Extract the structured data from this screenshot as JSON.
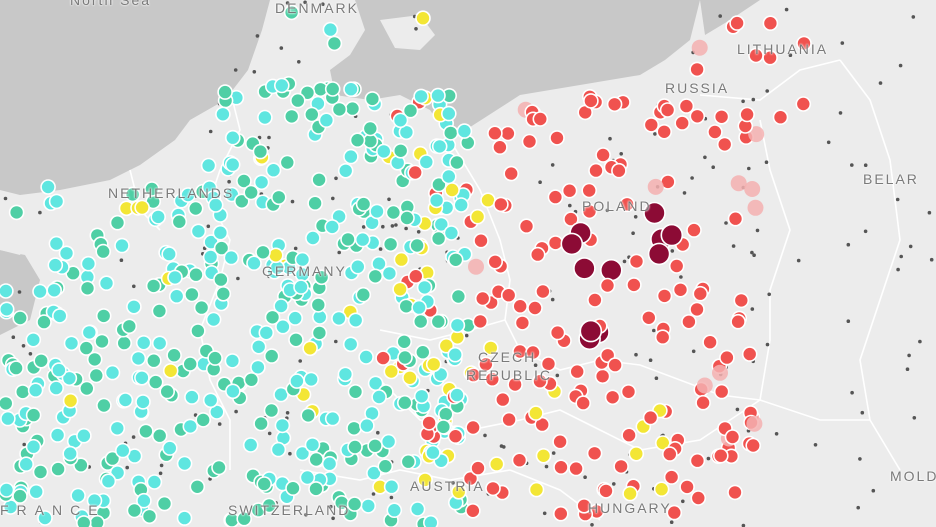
{
  "map": {
    "labels": {
      "north_sea": "North Sea",
      "denmark": "DENMARK",
      "lithuania": "LITHUANIA",
      "russia": "RUSSIA",
      "belarus": "BELAR",
      "netherlands": "NETHERLANDS",
      "poland": "POLAND",
      "germany": "GERMANY",
      "czech": "CZECH",
      "republic": "REPUBLIC",
      "austria": "AUSTRIA",
      "switzerland": "SWITZERLAND",
      "hungary": "HUNGARY",
      "france": "FRANCE",
      "moldova": "MOLD"
    },
    "colors": {
      "water": "#c8c8c8",
      "land": "#ececec",
      "border": "#ffffff",
      "teal": "#4fcfa5",
      "cyan": "#5fe6e0",
      "yellow": "#f3e635",
      "red": "#f0524f",
      "darkred": "#8c0b35",
      "pink": "#f5b0b0",
      "station": "#555555"
    }
  }
}
